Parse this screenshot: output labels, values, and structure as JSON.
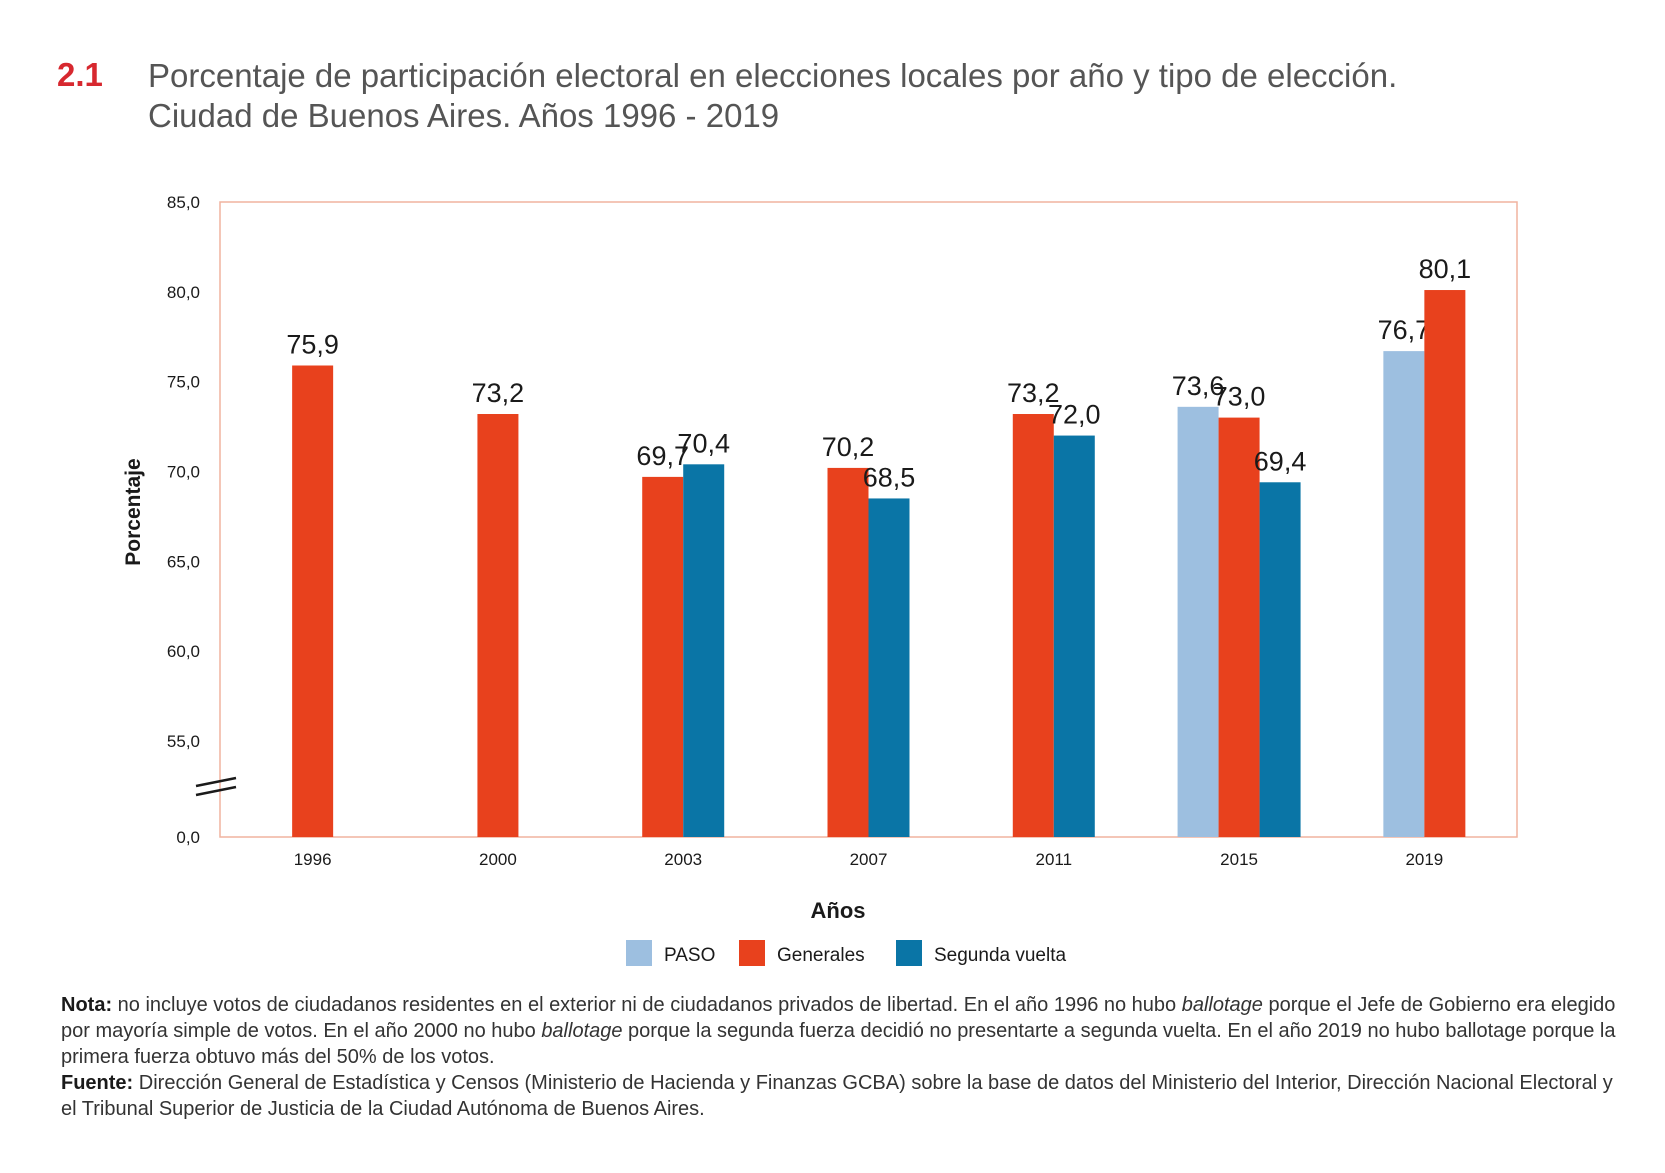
{
  "title": {
    "number": "2.1",
    "line1": "Porcentaje de participación electoral en elecciones locales por año y tipo de elección.",
    "line2": "Ciudad de Buenos Aires. Años 1996 - 2019"
  },
  "colors": {
    "accent": "#d7282f",
    "paso": "#9dbfe0",
    "generales": "#e8411d",
    "segunda": "#0a75a6",
    "frame": "#f0b39f"
  },
  "chart_data": {
    "type": "bar",
    "title": "Porcentaje de participación electoral en elecciones locales por año y tipo de elección.",
    "xlabel": "Años",
    "ylabel": "Porcentaje",
    "ylim": [
      0,
      85
    ],
    "axis_break": "between 0,0 and 55,0",
    "yticks": [
      "0,0",
      "55,0",
      "60,0",
      "65,0",
      "70,0",
      "75,0",
      "80,0",
      "85,0"
    ],
    "categories": [
      "1996",
      "2000",
      "2003",
      "2007",
      "2011",
      "2015",
      "2019"
    ],
    "series": [
      {
        "name": "PASO",
        "color": "#9dbfe0",
        "values": [
          null,
          null,
          null,
          null,
          null,
          73.6,
          76.7
        ],
        "labels": [
          null,
          null,
          null,
          null,
          null,
          "73,6",
          "76,7"
        ]
      },
      {
        "name": "Generales",
        "color": "#e8411d",
        "values": [
          75.9,
          73.2,
          69.7,
          70.2,
          73.2,
          73.0,
          80.1
        ],
        "labels": [
          "75,9",
          "73,2",
          "69,7",
          "70,2",
          "73,2",
          "73,0",
          "80,1"
        ]
      },
      {
        "name": "Segunda vuelta",
        "color": "#0a75a6",
        "values": [
          null,
          null,
          70.4,
          68.5,
          72.0,
          69.4,
          null
        ],
        "labels": [
          null,
          null,
          "70,4",
          "68,5",
          "72,0",
          "69,4",
          null
        ]
      }
    ],
    "legend": [
      "PASO",
      "Generales",
      "Segunda vuelta"
    ],
    "legend_position": "bottom-center"
  },
  "notes": {
    "nota_label": "Nota:",
    "nota_1": " no incluye votos de ciudadanos residentes en el exterior ni de ciudadanos privados de libertad. En el año 1996 no hubo ",
    "nota_italic_1": "ballotage",
    "nota_2": " porque el Jefe de Gobierno era elegido por mayoría simple de votos. En el año 2000 no hubo ",
    "nota_italic_2": "ballotage",
    "nota_3": " porque la segunda fuerza decidió no presentarte a segunda vuelta. En el año 2019 no hubo ballotage porque la primera fuerza obtuvo más del 50% de los votos.",
    "fuente_label": "Fuente:",
    "fuente_text": " Dirección General de Estadística y Censos (Ministerio de Hacienda y Finanzas GCBA) sobre la base de datos del Ministerio del Interior, Dirección Nacional Electoral y el Tribunal Superior de Justicia de la Ciudad Autónoma de Buenos Aires."
  }
}
